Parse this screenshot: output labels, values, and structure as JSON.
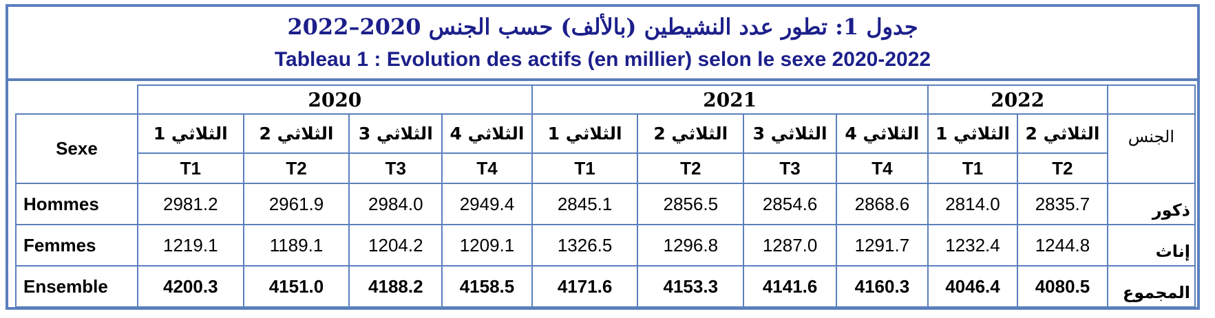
{
  "title": {
    "arabic": "جدول 1: تطور عدد النشيطين (بالألف) حسب الجنس 2020–2022",
    "french": "Tableau 1 : Evolution des actifs (en millier) selon le sexe 2020-2022"
  },
  "table": {
    "years": [
      "2020",
      "2021",
      "2022"
    ],
    "sexe_label_fr": "Sexe",
    "sexe_label_ar": "الجنس",
    "quarters_ar": [
      "الثلاثي 1",
      "الثلاثي 2",
      "الثلاثي 3",
      "الثلاثي 4",
      "الثلاثي 1",
      "الثلاثي 2",
      "الثلاثي 3",
      "الثلاثي 4",
      "الثلاثي 1",
      "الثلاثي 2"
    ],
    "quarter_codes": [
      "T1",
      "T2",
      "T3",
      "T4",
      "T1",
      "T2",
      "T3",
      "T4",
      "T1",
      "T2"
    ],
    "rows": [
      {
        "label_fr": "Hommes",
        "label_ar": "ذكور",
        "values": [
          "2981.2",
          "2961.9",
          "2984.0",
          "2949.4",
          "2845.1",
          "2856.5",
          "2854.6",
          "2868.6",
          "2814.0",
          "2835.7"
        ]
      },
      {
        "label_fr": "Femmes",
        "label_ar": "إناث",
        "values": [
          "1219.1",
          "1189.1",
          "1204.2",
          "1209.1",
          "1326.5",
          "1296.8",
          "1287.0",
          "1291.7",
          "1232.4",
          "1244.8"
        ]
      },
      {
        "label_fr": "Ensemble",
        "label_ar": "المجموع",
        "values": [
          "4200.3",
          "4151.0",
          "4188.2",
          "4158.5",
          "4171.6",
          "4153.3",
          "4141.6",
          "4160.3",
          "4046.4",
          "4080.5"
        ]
      }
    ]
  },
  "colors": {
    "border": "#5b7fbd",
    "title_text": "#1c1f8a"
  }
}
